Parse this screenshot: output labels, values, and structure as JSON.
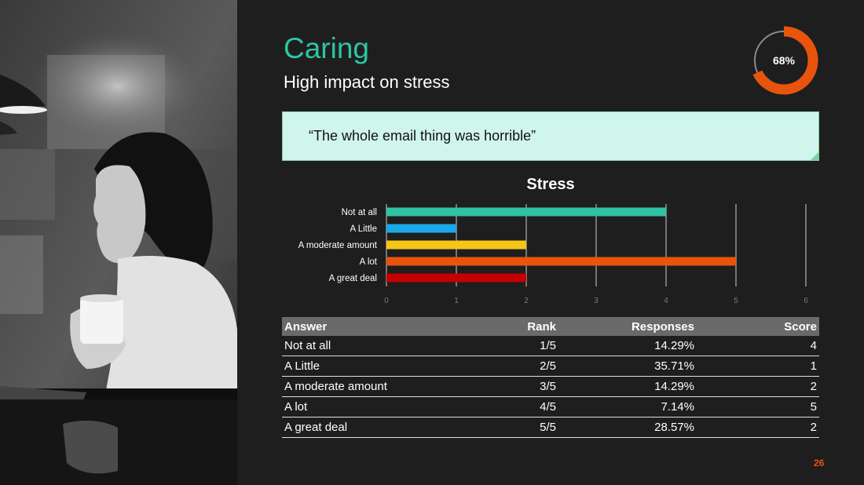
{
  "slide": {
    "title": "Caring",
    "subtitle": "High impact on stress",
    "percent_label": "68%",
    "percent_value": 68,
    "quote": "“The whole email thing was horrible”",
    "page_number": "26"
  },
  "colors": {
    "accent_teal": "#2ec4a3",
    "donut_orange": "#e8540c",
    "donut_track": "#8a8a8a",
    "quote_bg": "#cff5ec"
  },
  "chart_data": {
    "type": "bar",
    "orientation": "horizontal",
    "title": "Stress",
    "categories": [
      "Not at all",
      "A Little",
      "A moderate amount",
      "A lot",
      "A great deal"
    ],
    "values": [
      4,
      1,
      2,
      5,
      2
    ],
    "colors": [
      "#2ec4a3",
      "#1aa9e8",
      "#f5c518",
      "#e8540c",
      "#c40000"
    ],
    "xlim": [
      0,
      6
    ],
    "xticks": [
      "0",
      "1",
      "2",
      "3",
      "4",
      "5",
      "6"
    ],
    "grid": true,
    "legend": "none"
  },
  "table": {
    "headers": [
      "Answer",
      "Rank",
      "Responses",
      "Score"
    ],
    "rows": [
      [
        "Not at all",
        "1/5",
        "14.29%",
        "4"
      ],
      [
        "A Little",
        "2/5",
        "35.71%",
        "1"
      ],
      [
        "A moderate amount",
        "3/5",
        "14.29%",
        "2"
      ],
      [
        "A lot",
        "4/5",
        "7.14%",
        "5"
      ],
      [
        "A great deal",
        "5/5",
        "28.57%",
        "2"
      ]
    ]
  }
}
